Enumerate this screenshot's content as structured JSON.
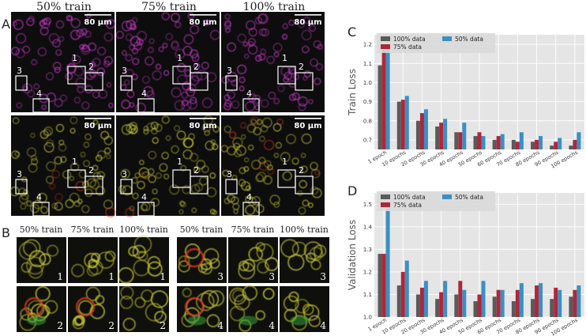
{
  "panel_letters": {
    "a": "A",
    "b": "B",
    "c": "C",
    "d": "D"
  },
  "panel_a": {
    "column_titles": [
      "50% train",
      "75% train",
      "100% train"
    ],
    "scale_bar_label": "80 µm",
    "box_labels": [
      "1",
      "2",
      "3",
      "4"
    ]
  },
  "panel_b": {
    "column_titles": [
      "50% train",
      "75% train",
      "100% train"
    ],
    "crop_numbers_left": [
      "1",
      "2"
    ],
    "crop_numbers_right": [
      "3",
      "4"
    ]
  },
  "colors": {
    "series_100": "#5a5a5a",
    "series_75": "#b0263a",
    "series_50": "#3b8fc4",
    "plot_bg": "#e5e5e5",
    "magenta": "#d23cd2",
    "yellow": "#c8c832",
    "red": "#d2321e",
    "green": "#32a03c"
  },
  "chart_data": [
    {
      "type": "bar",
      "title": "",
      "xlabel": "",
      "ylabel": "Train Loss",
      "ylim": [
        0.65,
        1.25
      ],
      "yticks": [
        "0.7",
        "0.8",
        "0.9",
        "1.0",
        "1.1",
        "1.2"
      ],
      "grid": true,
      "legend_position": "top-left",
      "categories": [
        "1 epoch",
        "10 epochs",
        "20 epochs",
        "30 epochs",
        "40 epochs",
        "50 epochs",
        "60 epochs",
        "70 epochs",
        "80 epochs",
        "90 epochs",
        "100 epochs"
      ],
      "series": [
        {
          "name": "100% data",
          "values": [
            1.09,
            0.9,
            0.8,
            0.77,
            0.74,
            0.72,
            0.7,
            0.7,
            0.69,
            0.67,
            0.67
          ]
        },
        {
          "name": "75% data",
          "values": [
            1.17,
            0.91,
            0.84,
            0.79,
            0.74,
            0.74,
            0.72,
            0.69,
            0.7,
            0.69,
            0.7
          ]
        },
        {
          "name": "50% data",
          "values": [
            1.2,
            0.93,
            0.86,
            0.81,
            0.79,
            0.72,
            0.73,
            0.74,
            0.72,
            0.71,
            0.74
          ]
        }
      ]
    },
    {
      "type": "bar",
      "title": "",
      "xlabel": "",
      "ylabel": "Validation Loss",
      "ylim": [
        1.0,
        1.55
      ],
      "yticks": [
        "1.0",
        "1.1",
        "1.2",
        "1.3",
        "1.4",
        "1.5"
      ],
      "grid": true,
      "legend_position": "top-left",
      "categories": [
        "1 epoch",
        "10 epochs",
        "20 epochs",
        "30 epochs",
        "40 epochs",
        "50 epochs",
        "60 epochs",
        "70 epochs",
        "80 epochs",
        "90 epochs",
        "100 epochs"
      ],
      "series": [
        {
          "name": "100% data",
          "values": [
            1.28,
            1.14,
            1.1,
            1.08,
            1.1,
            1.07,
            1.09,
            1.07,
            1.08,
            1.08,
            1.09
          ]
        },
        {
          "name": "75% data",
          "values": [
            1.28,
            1.2,
            1.13,
            1.11,
            1.16,
            1.1,
            1.12,
            1.12,
            1.14,
            1.13,
            1.12
          ]
        },
        {
          "name": "50% data",
          "values": [
            1.48,
            1.25,
            1.16,
            1.16,
            1.12,
            1.16,
            1.12,
            1.15,
            1.15,
            1.12,
            1.14
          ]
        }
      ]
    }
  ]
}
